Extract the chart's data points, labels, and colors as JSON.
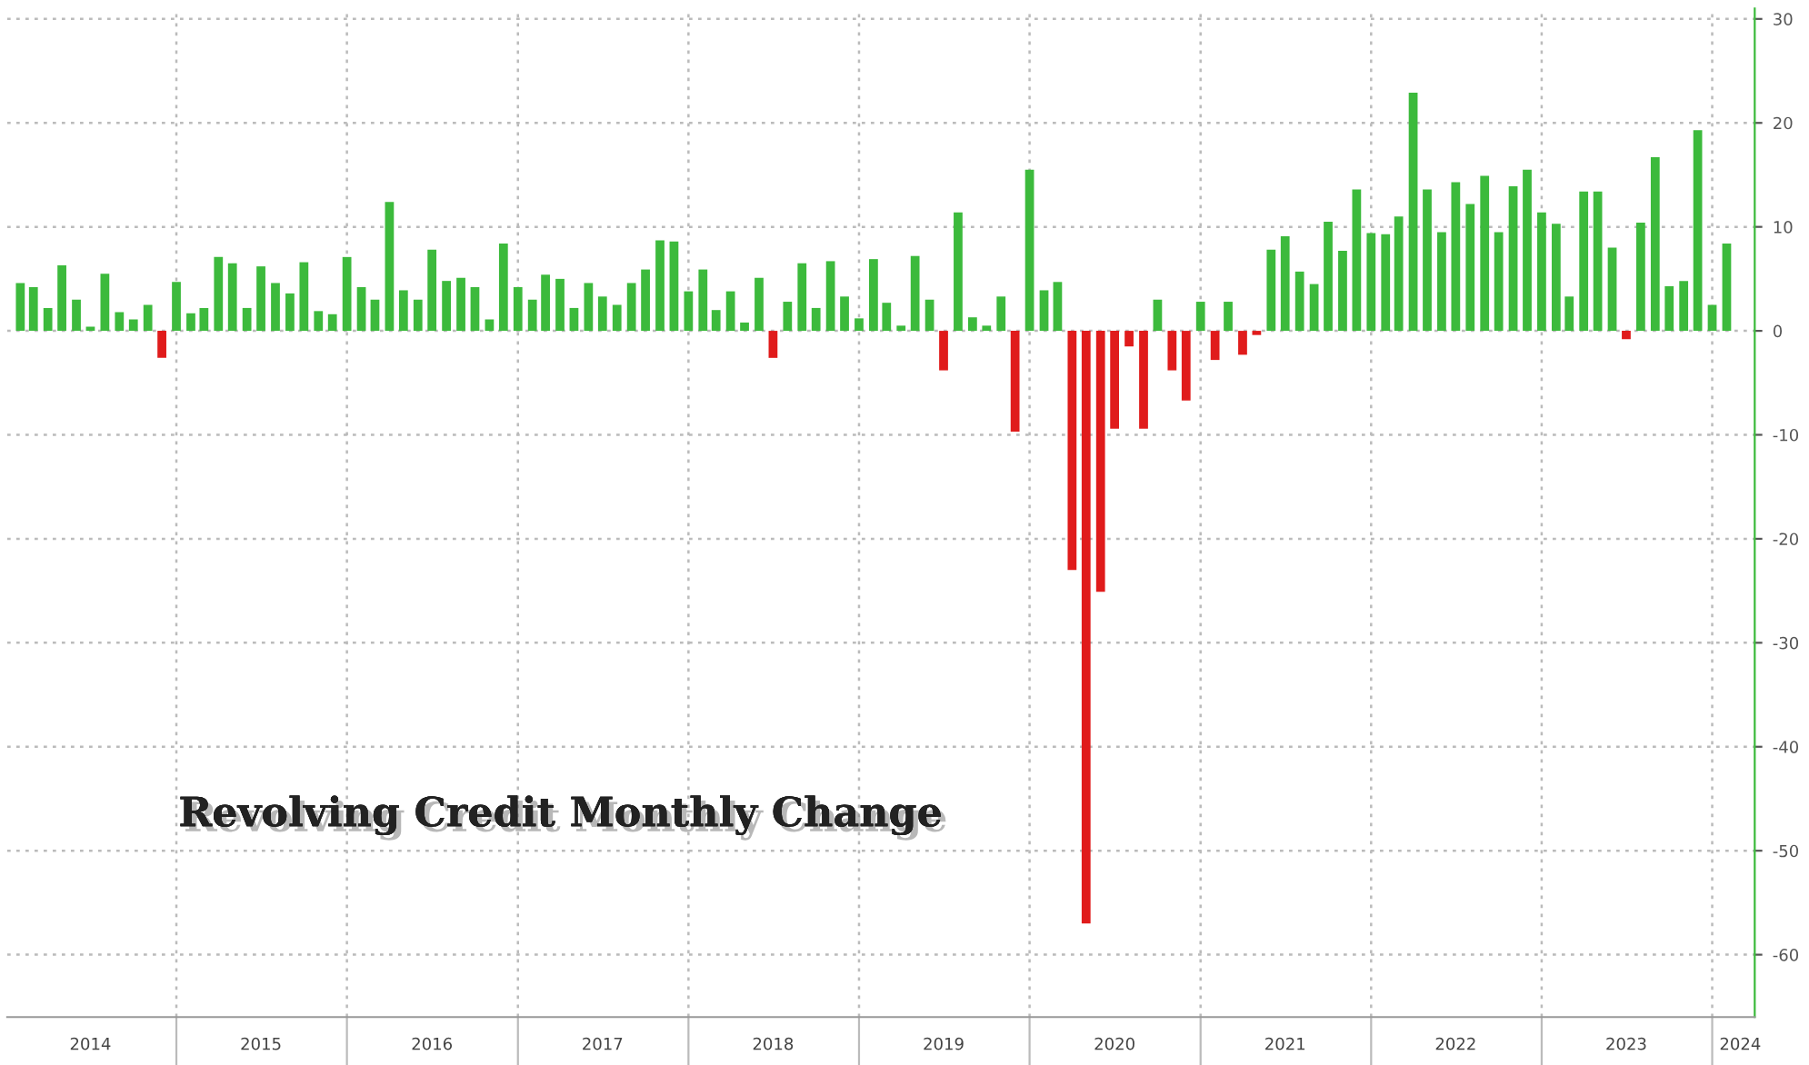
{
  "chart_data": {
    "type": "bar",
    "title": "Revolving Credit Monthly Change",
    "x": [
      "2014-02",
      "2014-03",
      "2014-04",
      "2014-05",
      "2014-06",
      "2014-07",
      "2014-08",
      "2014-09",
      "2014-10",
      "2014-11",
      "2014-12",
      "2015-01",
      "2015-02",
      "2015-03",
      "2015-04",
      "2015-05",
      "2015-06",
      "2015-07",
      "2015-08",
      "2015-09",
      "2015-10",
      "2015-11",
      "2015-12",
      "2016-01",
      "2016-02",
      "2016-03",
      "2016-04",
      "2016-05",
      "2016-06",
      "2016-07",
      "2016-08",
      "2016-09",
      "2016-10",
      "2016-11",
      "2016-12",
      "2017-01",
      "2017-02",
      "2017-03",
      "2017-04",
      "2017-05",
      "2017-06",
      "2017-07",
      "2017-08",
      "2017-09",
      "2017-10",
      "2017-11",
      "2017-12",
      "2018-01",
      "2018-02",
      "2018-03",
      "2018-04",
      "2018-05",
      "2018-06",
      "2018-07",
      "2018-08",
      "2018-09",
      "2018-10",
      "2018-11",
      "2018-12",
      "2019-01",
      "2019-02",
      "2019-03",
      "2019-04",
      "2019-05",
      "2019-06",
      "2019-07",
      "2019-08",
      "2019-09",
      "2019-10",
      "2019-11",
      "2019-12",
      "2020-01",
      "2020-02",
      "2020-03",
      "2020-04",
      "2020-05",
      "2020-06",
      "2020-07",
      "2020-08",
      "2020-09",
      "2020-10",
      "2020-11",
      "2020-12",
      "2021-01",
      "2021-02",
      "2021-03",
      "2021-04",
      "2021-05",
      "2021-06",
      "2021-07",
      "2021-08",
      "2021-09",
      "2021-10",
      "2021-11",
      "2021-12",
      "2022-01",
      "2022-02",
      "2022-03",
      "2022-04",
      "2022-05",
      "2022-06",
      "2022-07",
      "2022-08",
      "2022-09",
      "2022-10",
      "2022-11",
      "2022-12",
      "2023-01",
      "2023-02",
      "2023-03",
      "2023-04",
      "2023-05",
      "2023-06",
      "2023-07",
      "2023-08",
      "2023-09",
      "2023-10",
      "2023-11",
      "2023-12",
      "2024-01",
      "2024-02"
    ],
    "values": [
      4.6,
      4.2,
      2.2,
      6.3,
      3.0,
      0.4,
      5.5,
      1.8,
      1.1,
      2.5,
      -2.6,
      4.7,
      1.7,
      2.2,
      7.1,
      6.5,
      2.2,
      6.2,
      4.6,
      3.6,
      6.6,
      1.9,
      1.6,
      7.1,
      4.2,
      3.0,
      12.4,
      3.9,
      3.0,
      7.8,
      4.8,
      5.1,
      4.2,
      1.1,
      8.4,
      4.2,
      3.0,
      5.4,
      5.0,
      2.2,
      4.6,
      3.3,
      2.5,
      4.6,
      5.9,
      8.7,
      8.6,
      3.8,
      5.9,
      2.0,
      3.8,
      0.8,
      5.1,
      -2.6,
      2.8,
      6.5,
      2.2,
      6.7,
      3.3,
      1.2,
      6.9,
      2.7,
      0.5,
      7.2,
      3.0,
      -3.8,
      11.4,
      1.3,
      0.5,
      3.3,
      -9.7,
      15.5,
      3.9,
      4.7,
      -23.0,
      -57.0,
      -25.1,
      -9.4,
      -1.5,
      -9.4,
      3.0,
      -3.8,
      -6.7,
      2.8,
      -2.8,
      2.8,
      -2.3,
      -0.4,
      7.8,
      9.1,
      5.7,
      4.5,
      10.5,
      7.7,
      13.6,
      9.4,
      9.3,
      11.0,
      22.9,
      13.6,
      9.5,
      14.3,
      12.2,
      14.9,
      9.5,
      13.9,
      15.5,
      11.4,
      10.3,
      3.3,
      13.4,
      13.4,
      8.0,
      -0.8,
      10.4,
      16.7,
      4.3,
      4.8,
      19.3,
      2.5,
      8.4
    ],
    "colors": [
      "#3cba3c",
      "#3cba3c",
      "#3cba3c",
      "#3cba3c",
      "#3cba3c",
      "#3cba3c",
      "#3cba3c",
      "#3cba3c",
      "#3cba3c",
      "#3cba3c",
      "#e01b1b",
      "#3cba3c",
      "#3cba3c",
      "#3cba3c",
      "#3cba3c",
      "#3cba3c",
      "#3cba3c",
      "#3cba3c",
      "#3cba3c",
      "#3cba3c",
      "#3cba3c",
      "#3cba3c",
      "#3cba3c",
      "#3cba3c",
      "#3cba3c",
      "#3cba3c",
      "#3cba3c",
      "#3cba3c",
      "#3cba3c",
      "#3cba3c",
      "#3cba3c",
      "#3cba3c",
      "#3cba3c",
      "#3cba3c",
      "#3cba3c",
      "#3cba3c",
      "#3cba3c",
      "#3cba3c",
      "#3cba3c",
      "#3cba3c",
      "#3cba3c",
      "#3cba3c",
      "#3cba3c",
      "#3cba3c",
      "#3cba3c",
      "#3cba3c",
      "#3cba3c",
      "#3cba3c",
      "#3cba3c",
      "#3cba3c",
      "#3cba3c",
      "#3cba3c",
      "#3cba3c",
      "#e01b1b",
      "#3cba3c",
      "#3cba3c",
      "#3cba3c",
      "#3cba3c",
      "#3cba3c",
      "#3cba3c",
      "#3cba3c",
      "#3cba3c",
      "#3cba3c",
      "#3cba3c",
      "#3cba3c",
      "#e01b1b",
      "#3cba3c",
      "#3cba3c",
      "#3cba3c",
      "#3cba3c",
      "#e01b1b",
      "#3cba3c",
      "#3cba3c",
      "#3cba3c",
      "#e01b1b",
      "#e01b1b",
      "#e01b1b",
      "#e01b1b",
      "#e01b1b",
      "#e01b1b",
      "#3cba3c",
      "#e01b1b",
      "#e01b1b",
      "#3cba3c",
      "#e01b1b",
      "#3cba3c",
      "#e01b1b",
      "#e01b1b",
      "#3cba3c",
      "#3cba3c",
      "#3cba3c",
      "#3cba3c",
      "#3cba3c",
      "#3cba3c",
      "#3cba3c",
      "#3cba3c",
      "#3cba3c",
      "#3cba3c",
      "#3cba3c",
      "#3cba3c",
      "#3cba3c",
      "#3cba3c",
      "#3cba3c",
      "#3cba3c",
      "#3cba3c",
      "#3cba3c",
      "#3cba3c",
      "#3cba3c",
      "#3cba3c",
      "#3cba3c",
      "#3cba3c",
      "#3cba3c",
      "#3cba3c",
      "#e01b1b",
      "#3cba3c",
      "#3cba3c",
      "#3cba3c",
      "#3cba3c",
      "#3cba3c",
      "#3cba3c",
      "#3cba3c"
    ],
    "xlim": [
      "2014-01-04",
      "2024-04-01"
    ],
    "xticks": [
      {
        "value": "2014-07-01",
        "label": "2014"
      },
      {
        "value": "2015-07-01",
        "label": "2015"
      },
      {
        "value": "2016-07-01",
        "label": "2016"
      },
      {
        "value": "2017-07-01",
        "label": "2017"
      },
      {
        "value": "2018-07-01",
        "label": "2018"
      },
      {
        "value": "2019-07-01",
        "label": "2019"
      },
      {
        "value": "2020-07-01",
        "label": "2020"
      },
      {
        "value": "2021-07-01",
        "label": "2021"
      },
      {
        "value": "2022-07-01",
        "label": "2022"
      },
      {
        "value": "2023-07-01",
        "label": "2023"
      },
      {
        "value": "2024-03-01",
        "label": "2024"
      },
      {
        "value": "2015-01-01",
        "label": null
      },
      {
        "value": "2016-01-01",
        "label": null
      },
      {
        "value": "2017-01-01",
        "label": null
      },
      {
        "value": "2018-01-01",
        "label": null
      },
      {
        "value": "2019-01-01",
        "label": null
      },
      {
        "value": "2020-01-01",
        "label": null
      },
      {
        "value": "2021-01-01",
        "label": null
      },
      {
        "value": "2022-01-01",
        "label": null
      },
      {
        "value": "2023-01-01",
        "label": null
      },
      {
        "value": "2024-01-01",
        "label": null
      }
    ],
    "ylim": [
      -66,
      31
    ],
    "yticks": [
      -60,
      -50,
      -40,
      -30,
      -20,
      -10,
      0,
      10,
      20,
      30
    ],
    "grid": true,
    "legend": false
  }
}
